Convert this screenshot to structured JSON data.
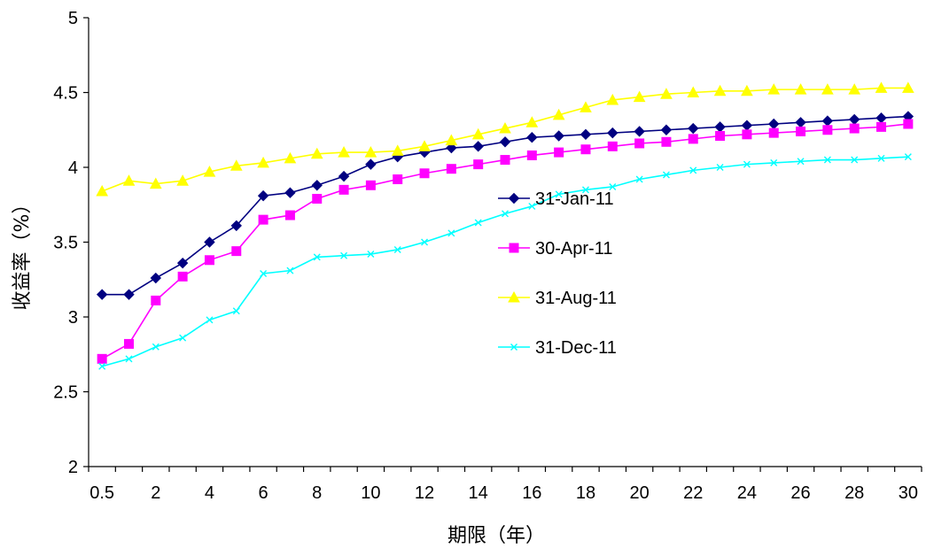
{
  "chart_data": {
    "type": "line",
    "title": "",
    "xlabel": "期限（年）",
    "ylabel": "收益率（%）",
    "ylim": [
      2,
      5
    ],
    "y_ticks": [
      "2",
      "2.5",
      "3",
      "3.5",
      "4",
      "4.5",
      "5"
    ],
    "x_categories": [
      "0.5",
      "1",
      "2",
      "3",
      "4",
      "5",
      "6",
      "7",
      "8",
      "9",
      "10",
      "11",
      "12",
      "13",
      "14",
      "15",
      "16",
      "17",
      "18",
      "19",
      "20",
      "21",
      "22",
      "23",
      "24",
      "25",
      "26",
      "27",
      "28",
      "29",
      "30"
    ],
    "x_tick_labels": [
      "0.5",
      "2",
      "4",
      "6",
      "8",
      "10",
      "12",
      "14",
      "16",
      "18",
      "20",
      "22",
      "24",
      "26",
      "28",
      "30"
    ],
    "grid": false,
    "legend_position": "center-right",
    "series": [
      {
        "name": "31-Jan-11",
        "color": "#000080",
        "marker": "diamond",
        "values": [
          3.15,
          3.15,
          3.26,
          3.36,
          3.5,
          3.61,
          3.81,
          3.83,
          3.88,
          3.94,
          4.02,
          4.07,
          4.1,
          4.13,
          4.14,
          4.17,
          4.2,
          4.21,
          4.22,
          4.23,
          4.24,
          4.25,
          4.26,
          4.27,
          4.28,
          4.29,
          4.3,
          4.31,
          4.32,
          4.33,
          4.34
        ]
      },
      {
        "name": "30-Apr-11",
        "color": "#FF00FF",
        "marker": "square",
        "values": [
          2.72,
          2.82,
          3.11,
          3.27,
          3.38,
          3.44,
          3.65,
          3.68,
          3.79,
          3.85,
          3.88,
          3.92,
          3.96,
          3.99,
          4.02,
          4.05,
          4.08,
          4.1,
          4.12,
          4.14,
          4.16,
          4.17,
          4.19,
          4.21,
          4.22,
          4.23,
          4.24,
          4.25,
          4.26,
          4.27,
          4.29
        ]
      },
      {
        "name": "31-Aug-11",
        "color": "#FFFF00",
        "marker": "triangle",
        "values": [
          3.84,
          3.91,
          3.89,
          3.91,
          3.97,
          4.01,
          4.03,
          4.06,
          4.09,
          4.1,
          4.1,
          4.11,
          4.14,
          4.18,
          4.22,
          4.26,
          4.3,
          4.35,
          4.4,
          4.45,
          4.47,
          4.49,
          4.5,
          4.51,
          4.51,
          4.52,
          4.52,
          4.52,
          4.52,
          4.53,
          4.53
        ]
      },
      {
        "name": "31-Dec-11",
        "color": "#00FFFF",
        "marker": "x",
        "values": [
          2.67,
          2.72,
          2.8,
          2.86,
          2.98,
          3.04,
          3.29,
          3.31,
          3.4,
          3.41,
          3.42,
          3.45,
          3.5,
          3.56,
          3.63,
          3.69,
          3.74,
          3.82,
          3.85,
          3.87,
          3.92,
          3.95,
          3.98,
          4.0,
          4.02,
          4.03,
          4.04,
          4.05,
          4.05,
          4.06,
          4.07
        ]
      }
    ]
  }
}
